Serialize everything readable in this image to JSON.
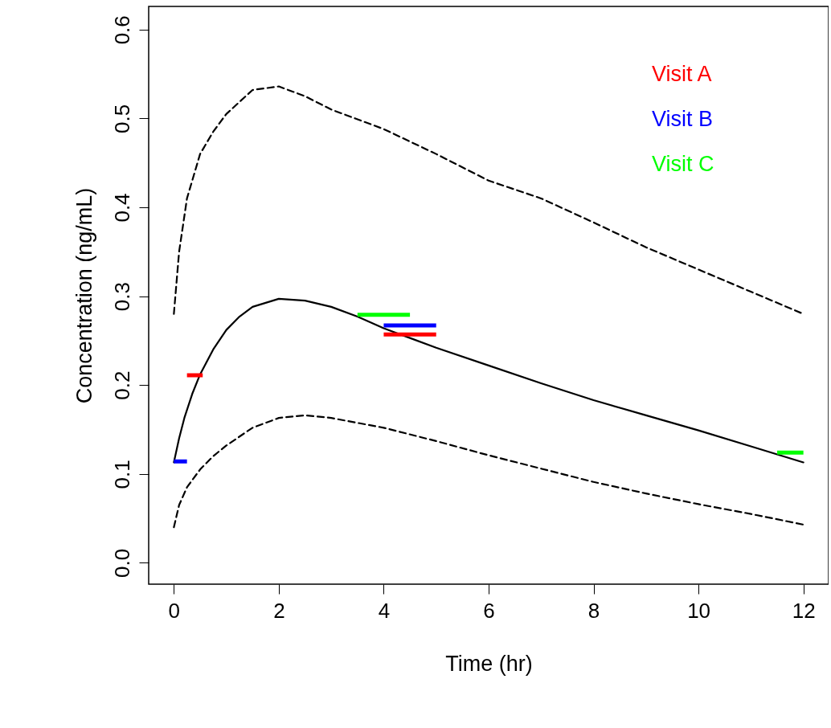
{
  "chart_data": {
    "type": "line",
    "xlabel": "Time (hr)",
    "ylabel": "Concentration (ng/mL)",
    "xlim": [
      -0.48,
      12.48
    ],
    "ylim": [
      -0.024,
      0.626
    ],
    "xticks": [
      0,
      2,
      4,
      6,
      8,
      10,
      12
    ],
    "yticks": [
      {
        "value": 0,
        "label": "0.0"
      },
      0.1,
      0.2,
      0.3,
      0.4,
      0.5,
      0.6
    ],
    "grid": false,
    "legend": "top right",
    "marker": "none",
    "series": [
      {
        "color": "#000000",
        "line_style": "solid",
        "x": [
          0,
          0.1,
          0.2,
          0.35,
          0.5,
          0.75,
          1,
          1.25,
          1.5,
          2,
          2.5,
          3,
          3.5,
          4,
          4.5,
          5,
          6,
          7,
          8,
          9,
          10,
          11,
          12
        ],
        "values": [
          0.113,
          0.14,
          0.163,
          0.19,
          0.212,
          0.24,
          0.262,
          0.277,
          0.288,
          0.297,
          0.295,
          0.288,
          0.277,
          0.264,
          0.253,
          0.242,
          0.222,
          0.202,
          0.183,
          0.166,
          0.149,
          0.131,
          0.113
        ]
      },
      {
        "color": "#000000",
        "line_style": "dashed",
        "x": [
          0,
          0.1,
          0.25,
          0.5,
          0.75,
          1,
          1.5,
          2,
          2.5,
          3,
          4,
          5,
          6,
          7,
          8,
          9,
          10,
          11,
          12
        ],
        "values": [
          0.28,
          0.35,
          0.41,
          0.46,
          0.485,
          0.505,
          0.532,
          0.536,
          0.525,
          0.51,
          0.488,
          0.46,
          0.43,
          0.41,
          0.383,
          0.355,
          0.33,
          0.305,
          0.28
        ]
      },
      {
        "color": "#000000",
        "line_style": "dashed",
        "x": [
          0,
          0.1,
          0.25,
          0.5,
          0.75,
          1,
          1.5,
          2,
          2.5,
          3,
          4,
          5,
          6,
          7,
          8,
          9,
          10,
          11,
          12
        ],
        "values": [
          0.04,
          0.065,
          0.085,
          0.105,
          0.12,
          0.132,
          0.152,
          0.163,
          0.166,
          0.163,
          0.152,
          0.137,
          0.121,
          0.106,
          0.091,
          0.078,
          0.066,
          0.055,
          0.043
        ]
      },
      {
        "name": "Visit A",
        "color": "#ff0000",
        "line_style": "solid",
        "x": [
          0.25,
          0.55,
          2,
          4,
          5
        ],
        "values": [
          0.211,
          0.211,
          null,
          0.257,
          0.257
        ]
      },
      {
        "name": "Visit B",
        "color": "#0000ff",
        "line_style": "solid",
        "x": [
          0,
          0.25,
          2,
          4,
          5
        ],
        "values": [
          0.114,
          0.114,
          null,
          0.267,
          0.267
        ]
      },
      {
        "name": "Visit C",
        "color": "#00ff00",
        "line_style": "solid",
        "x": [
          3.5,
          4.5,
          8,
          11.5,
          12
        ],
        "values": [
          0.279,
          0.279,
          null,
          0.124,
          0.124
        ]
      }
    ]
  }
}
